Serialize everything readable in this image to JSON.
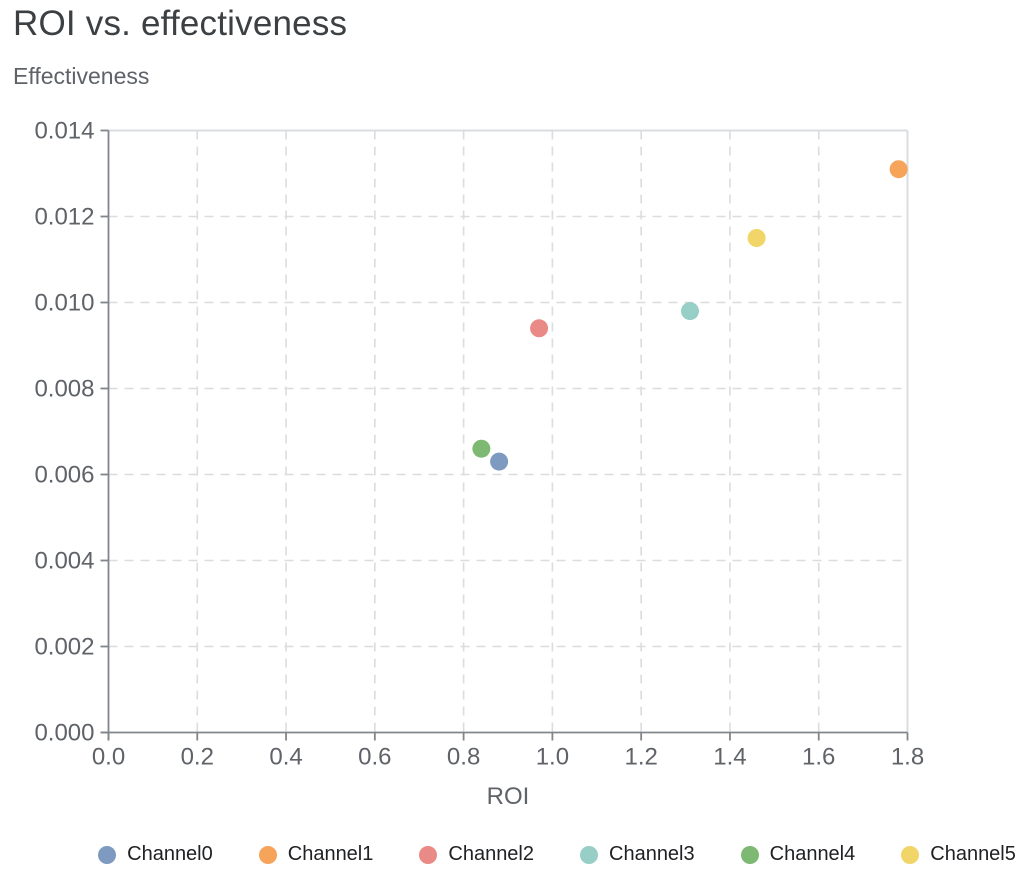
{
  "chart_data": {
    "type": "scatter",
    "title": "ROI vs. effectiveness",
    "subtitle": "Effectiveness",
    "xlabel": "ROI",
    "ylabel": "Effectiveness",
    "xlim": [
      0,
      1.8
    ],
    "ylim": [
      0,
      0.014
    ],
    "x_ticks": [
      0,
      0.2,
      0.4,
      0.6,
      0.8,
      1.0,
      1.2,
      1.4,
      1.6,
      1.8
    ],
    "x_tick_labels": [
      "0.0",
      "0.2",
      "0.4",
      "0.6",
      "0.8",
      "1.0",
      "1.2",
      "1.4",
      "1.6",
      "1.8"
    ],
    "y_ticks": [
      0,
      0.002,
      0.004,
      0.006,
      0.008,
      0.01,
      0.012,
      0.014
    ],
    "y_tick_labels": [
      "0.000",
      "0.002",
      "0.004",
      "0.006",
      "0.008",
      "0.010",
      "0.012",
      "0.014"
    ],
    "grid": "dashed",
    "legend_position": "bottom",
    "series": [
      {
        "name": "Channel0",
        "color": "#7E9AC1",
        "x": 0.88,
        "y": 0.0063
      },
      {
        "name": "Channel1",
        "color": "#F6A45A",
        "x": 1.78,
        "y": 0.0131
      },
      {
        "name": "Channel2",
        "color": "#EA8A86",
        "x": 0.97,
        "y": 0.0094
      },
      {
        "name": "Channel3",
        "color": "#97CEC5",
        "x": 1.31,
        "y": 0.0098
      },
      {
        "name": "Channel4",
        "color": "#7EB974",
        "x": 0.84,
        "y": 0.0066
      },
      {
        "name": "Channel5",
        "color": "#F1D569",
        "x": 1.46,
        "y": 0.0115
      }
    ]
  },
  "colors": {
    "background": "#FFFFFF",
    "title_text": "#3C4043",
    "muted_text": "#5F6368",
    "legend_text": "#202124",
    "axis_line": "#80868B",
    "gridline": "#DADCE0"
  }
}
